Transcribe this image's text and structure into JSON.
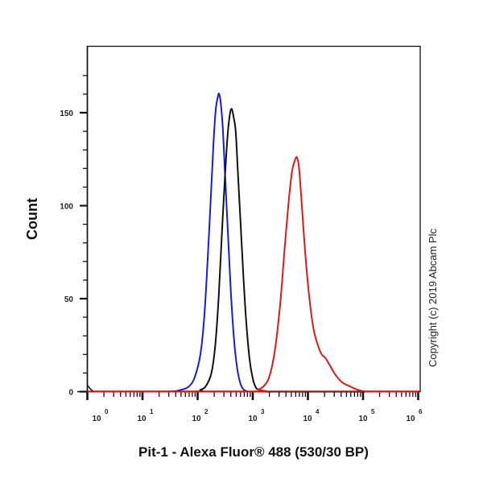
{
  "chart_data": {
    "type": "line",
    "subtype": "flow cytometry histogram overlay",
    "title": "",
    "xlabel": "Pit-1 - Alexa Fluor® 488 (530/30 BP)",
    "ylabel": "Count",
    "xscale": "log",
    "xlim": [
      1,
      1000000
    ],
    "ylim": [
      0,
      180
    ],
    "x_tick_labels": [
      "10^0",
      "10^1",
      "10^2",
      "10^3",
      "10^4",
      "10^5",
      "10^6"
    ],
    "y_tick_labels": [
      "0",
      "50",
      "100",
      "150"
    ],
    "y_ticks": [
      0,
      50,
      100,
      150
    ],
    "grid": false,
    "legend": null,
    "annotations": [
      "Copyright (c) 2019 Abcam Plc"
    ],
    "series": [
      {
        "name": "blue",
        "color": "#1a1adf",
        "x_log10": [
          1.4,
          1.7,
          1.85,
          1.95,
          2.05,
          2.12,
          2.18,
          2.24,
          2.29,
          2.33,
          2.37,
          2.39,
          2.42,
          2.46,
          2.5,
          2.55,
          2.6,
          2.66,
          2.72,
          2.78,
          2.84,
          2.92,
          3.0
        ],
        "y": [
          0,
          1,
          3,
          8,
          20,
          40,
          70,
          105,
          135,
          152,
          159,
          160,
          155,
          140,
          115,
          85,
          55,
          28,
          12,
          4,
          1,
          0,
          0
        ]
      },
      {
        "name": "black",
        "color": "#111111",
        "x_log10": [
          1.9,
          2.05,
          2.15,
          2.25,
          2.32,
          2.38,
          2.44,
          2.5,
          2.55,
          2.59,
          2.62,
          2.65,
          2.69,
          2.73,
          2.78,
          2.83,
          2.88,
          2.94,
          3.0,
          3.06,
          3.12,
          3.2,
          3.3
        ],
        "y": [
          0,
          1,
          3,
          10,
          25,
          50,
          85,
          118,
          140,
          150,
          152,
          148,
          140,
          118,
          90,
          62,
          38,
          18,
          7,
          2,
          1,
          0,
          0
        ]
      },
      {
        "name": "red",
        "color": "#e01818",
        "x_log10": [
          3.0,
          3.1,
          3.2,
          3.3,
          3.4,
          3.5,
          3.58,
          3.65,
          3.71,
          3.76,
          3.8,
          3.84,
          3.89,
          3.95,
          4.02,
          4.1,
          4.18,
          4.25,
          4.32,
          4.4,
          4.5,
          4.62,
          4.75,
          4.9,
          5.05,
          5.2
        ],
        "y": [
          0,
          1,
          3,
          8,
          22,
          48,
          78,
          102,
          118,
          124,
          126,
          120,
          100,
          75,
          52,
          34,
          25,
          20,
          18,
          14,
          9,
          5,
          3,
          1,
          0,
          0
        ]
      }
    ]
  },
  "plot": {
    "copyright": "Copyright (c) 2019 Abcam Plc"
  }
}
